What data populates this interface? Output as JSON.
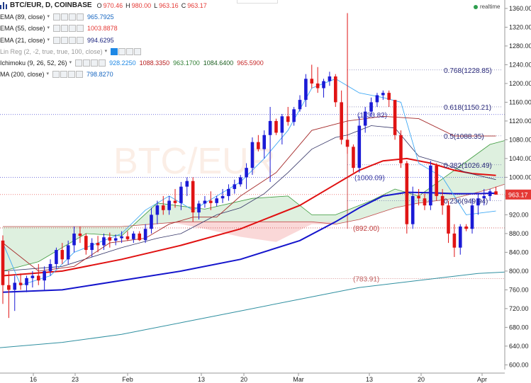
{
  "header": {
    "symbol": "BTC/EUR, D, COINBASE",
    "ohlc": [
      {
        "label": "O",
        "value": "970.46"
      },
      {
        "label": "H",
        "value": "980.00"
      },
      {
        "label": "L",
        "value": "963.16"
      },
      {
        "label": "C",
        "value": "963.17"
      }
    ],
    "ohlc_color": "#e53935",
    "realtime": "realtime"
  },
  "indicators": [
    {
      "name": "EMA (89, close)",
      "values": [
        "965.7925"
      ],
      "colors": [
        "#1565c0"
      ]
    },
    {
      "name": "EMA (55, close)",
      "values": [
        "1003.8878"
      ],
      "colors": [
        "#e53935"
      ]
    },
    {
      "name": "EMA (21, close)",
      "values": [
        "994.6295"
      ],
      "colors": [
        "#1a237e"
      ]
    },
    {
      "name": "Lin Reg (2, -2, true, true, 100, close)",
      "values": [],
      "colors": []
    },
    {
      "name": "Ichimoku (9, 26, 52, 26)",
      "values": [
        "928.2250",
        "1088.3350",
        "963.1700",
        "1084.6400",
        "965.5900"
      ],
      "colors": [
        "#1e88e5",
        "#b71c1c",
        "#2e7d32",
        "#1b5e20",
        "#c62828"
      ]
    },
    {
      "name": "MA (200, close)",
      "values": [
        "798.8270"
      ],
      "colors": [
        "#1565c0"
      ]
    }
  ],
  "chart_data": {
    "type": "candlestick",
    "title": "BTC/EUR, D, COINBASE",
    "price_axis": {
      "ticks": [
        "1360.00",
        "1320.00",
        "1280.00",
        "1240.00",
        "1200.00",
        "1160.00",
        "1120.00",
        "1080.00",
        "1040.00",
        "1000.00",
        "960.00",
        "920.00",
        "880.00",
        "840.00",
        "800.00",
        "760.00",
        "720.00",
        "680.00",
        "640.00",
        "600.00"
      ],
      "range": [
        590,
        1378
      ],
      "last_price": "963.17"
    },
    "time_axis": {
      "ticks": [
        "16",
        "23",
        "Feb",
        "13",
        "20",
        "Mar",
        "13",
        "20",
        "Apr"
      ]
    },
    "candles": [
      [
        865,
        876,
        730,
        770
      ],
      [
        770,
        800,
        700,
        760
      ],
      [
        760,
        790,
        715,
        775
      ],
      [
        775,
        795,
        760,
        770
      ],
      [
        770,
        790,
        755,
        785
      ],
      [
        785,
        800,
        765,
        790
      ],
      [
        790,
        815,
        770,
        780
      ],
      [
        780,
        810,
        760,
        800
      ],
      [
        800,
        825,
        790,
        815
      ],
      [
        815,
        850,
        805,
        845
      ],
      [
        845,
        860,
        815,
        825
      ],
      [
        825,
        865,
        815,
        855
      ],
      [
        855,
        895,
        840,
        880
      ],
      [
        880,
        895,
        860,
        875
      ],
      [
        875,
        880,
        835,
        845
      ],
      [
        845,
        870,
        830,
        860
      ],
      [
        860,
        875,
        840,
        855
      ],
      [
        855,
        880,
        845,
        872
      ],
      [
        872,
        882,
        850,
        865
      ],
      [
        865,
        878,
        855,
        870
      ],
      [
        870,
        885,
        860,
        874
      ],
      [
        874,
        885,
        864,
        868
      ],
      [
        868,
        885,
        860,
        880
      ],
      [
        880,
        885,
        864,
        866
      ],
      [
        866,
        900,
        860,
        890
      ],
      [
        890,
        935,
        880,
        920
      ],
      [
        920,
        950,
        900,
        940
      ],
      [
        940,
        960,
        920,
        930
      ],
      [
        930,
        960,
        920,
        950
      ],
      [
        950,
        975,
        935,
        945
      ],
      [
        945,
        990,
        930,
        980
      ],
      [
        980,
        1000,
        960,
        992
      ],
      [
        992,
        1000,
        905,
        925
      ],
      [
        925,
        950,
        910,
        944
      ],
      [
        944,
        960,
        935,
        950
      ],
      [
        950,
        970,
        930,
        945
      ],
      [
        945,
        960,
        938,
        955
      ],
      [
        955,
        975,
        945,
        960
      ],
      [
        960,
        985,
        950,
        975
      ],
      [
        975,
        995,
        965,
        985
      ],
      [
        985,
        1005,
        980,
        1000
      ],
      [
        1000,
        1030,
        975,
        1020
      ],
      [
        1020,
        1085,
        1005,
        1075
      ],
      [
        1075,
        1090,
        1055,
        1060
      ],
      [
        1060,
        1100,
        1040,
        1090
      ],
      [
        1090,
        1150,
        990,
        1120
      ],
      [
        1120,
        1125,
        1090,
        1095
      ],
      [
        1095,
        1135,
        1070,
        1130
      ],
      [
        1130,
        1150,
        1110,
        1118
      ],
      [
        1118,
        1150,
        1110,
        1145
      ],
      [
        1145,
        1175,
        1140,
        1165
      ],
      [
        1165,
        1220,
        1150,
        1210
      ],
      [
        1210,
        1240,
        1190,
        1200
      ],
      [
        1200,
        1235,
        1180,
        1190
      ],
      [
        1190,
        1210,
        1170,
        1205
      ],
      [
        1205,
        1225,
        1195,
        1215
      ],
      [
        1215,
        1220,
        1150,
        1160
      ],
      [
        1160,
        1185,
        1070,
        1080
      ],
      [
        1080,
        1350,
        1050,
        1065
      ],
      [
        1065,
        1070,
        1010,
        1020
      ],
      [
        1020,
        1130,
        1010,
        1110
      ],
      [
        1110,
        1150,
        1095,
        1140
      ],
      [
        1140,
        1170,
        1130,
        1160
      ],
      [
        1160,
        1180,
        1150,
        1175
      ],
      [
        1175,
        1185,
        1165,
        1180
      ],
      [
        1180,
        1185,
        1150,
        1165
      ],
      [
        1165,
        1160,
        1080,
        1090
      ],
      [
        1090,
        1100,
        1020,
        1030
      ],
      [
        1030,
        1035,
        880,
        900
      ],
      [
        900,
        980,
        890,
        960
      ],
      [
        960,
        975,
        940,
        955
      ],
      [
        955,
        965,
        930,
        940
      ],
      [
        940,
        1035,
        930,
        1025
      ],
      [
        1025,
        1030,
        950,
        960
      ],
      [
        960,
        975,
        920,
        940
      ],
      [
        940,
        950,
        860,
        880
      ],
      [
        880,
        900,
        830,
        850
      ],
      [
        850,
        900,
        835,
        895
      ],
      [
        895,
        900,
        885,
        890
      ],
      [
        890,
        955,
        880,
        940
      ],
      [
        940,
        965,
        920,
        955
      ],
      [
        955,
        975,
        940,
        960
      ],
      [
        960,
        975,
        950,
        970
      ],
      [
        970,
        980,
        963,
        963
      ]
    ],
    "series": [
      {
        "name": "EMA (89, close)",
        "color": "#1515cc",
        "values": [
          [
            0,
            755
          ],
          [
            10,
            760
          ],
          [
            20,
            780
          ],
          [
            30,
            800
          ],
          [
            40,
            825
          ],
          [
            50,
            865
          ],
          [
            56,
            905
          ],
          [
            60,
            935
          ],
          [
            64,
            960
          ],
          [
            68,
            968
          ],
          [
            72,
            967
          ],
          [
            76,
            965
          ],
          [
            79,
            965
          ],
          [
            83,
            966
          ]
        ]
      },
      {
        "name": "EMA (55, close)",
        "color": "#e01010",
        "values": [
          [
            0,
            790
          ],
          [
            10,
            800
          ],
          [
            20,
            825
          ],
          [
            30,
            855
          ],
          [
            40,
            890
          ],
          [
            50,
            940
          ],
          [
            56,
            985
          ],
          [
            60,
            1015
          ],
          [
            64,
            1035
          ],
          [
            68,
            1040
          ],
          [
            72,
            1030
          ],
          [
            76,
            1015
          ],
          [
            79,
            1008
          ],
          [
            83,
            1004
          ]
        ]
      },
      {
        "name": "EMA (21, close)",
        "color": "#333366",
        "values": [
          [
            0,
            800
          ],
          [
            10,
            810
          ],
          [
            20,
            850
          ],
          [
            26,
            870
          ],
          [
            30,
            880
          ],
          [
            36,
            920
          ],
          [
            40,
            935
          ],
          [
            44,
            965
          ],
          [
            48,
            1010
          ],
          [
            52,
            1060
          ],
          [
            56,
            1085
          ],
          [
            58,
            1090
          ],
          [
            62,
            1110
          ],
          [
            66,
            1105
          ],
          [
            70,
            1045
          ],
          [
            74,
            1030
          ],
          [
            78,
            1010
          ],
          [
            83,
            995
          ]
        ]
      },
      {
        "name": "Tenkan",
        "color": "#3fa9f5",
        "values": [
          [
            0,
            860
          ],
          [
            3,
            770
          ],
          [
            8,
            790
          ],
          [
            12,
            840
          ],
          [
            16,
            860
          ],
          [
            20,
            880
          ],
          [
            24,
            930
          ],
          [
            28,
            960
          ],
          [
            32,
            930
          ],
          [
            36,
            960
          ],
          [
            40,
            990
          ],
          [
            44,
            1040
          ],
          [
            48,
            1100
          ],
          [
            52,
            1190
          ],
          [
            56,
            1210
          ],
          [
            60,
            1180
          ],
          [
            64,
            1170
          ],
          [
            67,
            1160
          ],
          [
            70,
            1030
          ],
          [
            74,
            1000
          ],
          [
            78,
            920
          ],
          [
            83,
            928
          ]
        ]
      },
      {
        "name": "Kijun",
        "color": "#a52a2a",
        "values": [
          [
            0,
            860
          ],
          [
            6,
            800
          ],
          [
            12,
            810
          ],
          [
            18,
            860
          ],
          [
            24,
            870
          ],
          [
            28,
            900
          ],
          [
            32,
            915
          ],
          [
            36,
            915
          ],
          [
            40,
            960
          ],
          [
            46,
            1010
          ],
          [
            52,
            1100
          ],
          [
            58,
            1120
          ],
          [
            64,
            1130
          ],
          [
            70,
            1125
          ],
          [
            76,
            1088
          ],
          [
            83,
            1088
          ]
        ]
      },
      {
        "name": "MA (200, close)",
        "color": "#2f8fa0",
        "values": [
          [
            -2,
            635
          ],
          [
            10,
            648
          ],
          [
            20,
            665
          ],
          [
            30,
            690
          ],
          [
            40,
            715
          ],
          [
            50,
            740
          ],
          [
            60,
            765
          ],
          [
            70,
            780
          ],
          [
            80,
            795
          ],
          [
            86,
            799
          ]
        ]
      }
    ],
    "cloud": {
      "span_a": [
        [
          0,
          800
        ],
        [
          6,
          820
        ],
        [
          14,
          880
        ],
        [
          20,
          875
        ],
        [
          26,
          945
        ],
        [
          34,
          932
        ],
        [
          42,
          955
        ],
        [
          48,
          960
        ],
        [
          52,
          920
        ],
        [
          56,
          920
        ],
        [
          62,
          950
        ],
        [
          66,
          975
        ],
        [
          70,
          960
        ],
        [
          76,
          1015
        ],
        [
          82,
          1070
        ],
        [
          88,
          1090
        ],
        [
          94,
          1100
        ]
      ],
      "span_b": [
        [
          0,
          895
        ],
        [
          10,
          895
        ],
        [
          20,
          895
        ],
        [
          30,
          905
        ],
        [
          38,
          905
        ],
        [
          46,
          905
        ],
        [
          52,
          905
        ],
        [
          56,
          900
        ],
        [
          60,
          910
        ],
        [
          66,
          935
        ],
        [
          70,
          945
        ],
        [
          76,
          955
        ],
        [
          82,
          975
        ],
        [
          88,
          1000
        ],
        [
          94,
          1040
        ]
      ]
    },
    "fibonacci": [
      {
        "level": "0.768",
        "price": 1228.85,
        "label": "0.768(1228.85)"
      },
      {
        "level": "0.618",
        "price": 1150.21,
        "label": "0.618(1150.21)"
      },
      {
        "level": "0.5",
        "price": 1088.35,
        "label": "0.5(1088.35)"
      },
      {
        "level": "0.382",
        "price": 1026.49,
        "label": "0.382(1026.49)"
      },
      {
        "level": "0.236",
        "price": 949.94,
        "label": "0.236(949.94)"
      }
    ],
    "price_labels": [
      {
        "price": 1133.82,
        "label": "(1133.82)"
      },
      {
        "price": 1000.09,
        "label": "(1000.09)"
      },
      {
        "price": 892.0,
        "label": "(892.00)"
      },
      {
        "price": 783.91,
        "label": "(783.91)"
      }
    ]
  }
}
